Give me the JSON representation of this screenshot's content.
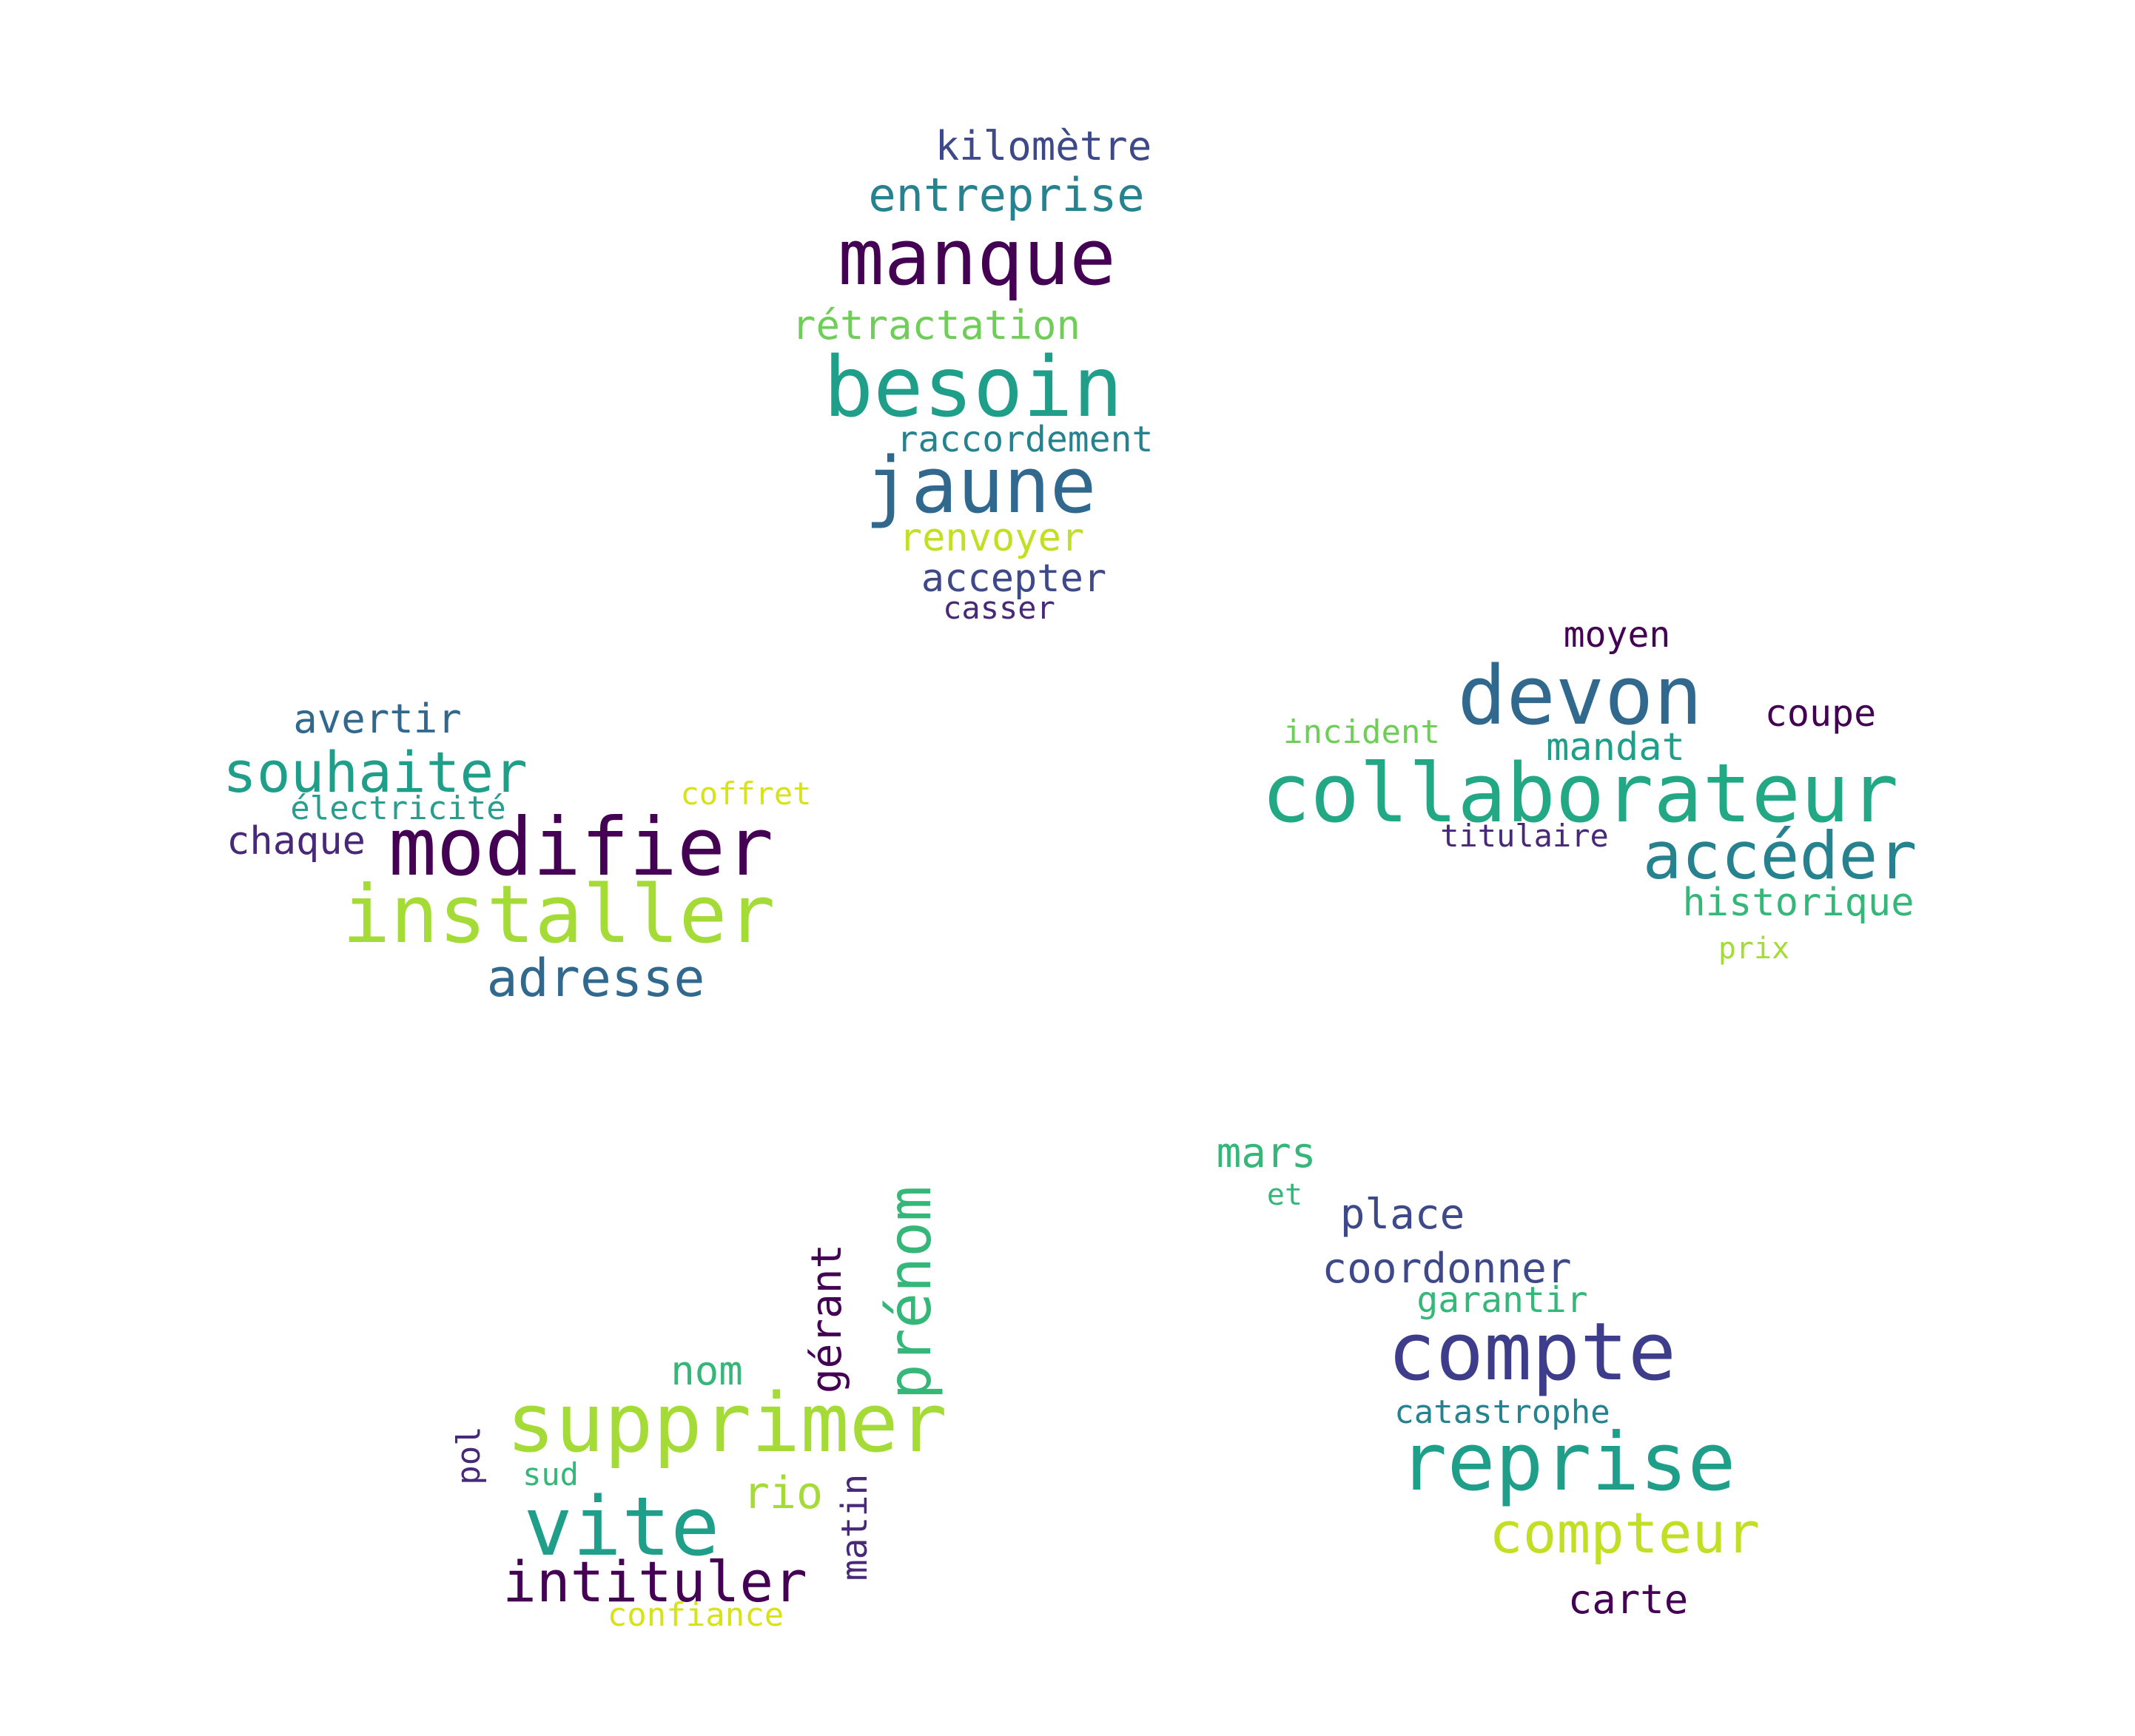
{
  "colors": {
    "background": "#ffffff",
    "dark_purple": "#440154",
    "purple": "#482878",
    "indigo": "#3e4989",
    "blue": "#31688e",
    "teal": "#26828e",
    "teal_green": "#1f9e89",
    "green": "#35b779",
    "light_green": "#6ece58",
    "lime": "#b5de2b",
    "yellow": "#d8e219"
  },
  "clusters": {
    "top": [
      {
        "text": "kilomètre",
        "color": "#3e4989"
      },
      {
        "text": "entreprise",
        "color": "#26828e"
      },
      {
        "text": "manque",
        "color": "#440154"
      },
      {
        "text": "rétractation",
        "color": "#6ece58"
      },
      {
        "text": "besoin",
        "color": "#1f9e89"
      },
      {
        "text": "raccordement",
        "color": "#26828e"
      },
      {
        "text": "jaune",
        "color": "#31688e"
      },
      {
        "text": "renvoyer",
        "color": "#c2df23"
      },
      {
        "text": "accepter",
        "color": "#3e4989"
      },
      {
        "text": "casser",
        "color": "#482878"
      }
    ],
    "left": [
      {
        "text": "avertir",
        "color": "#31688e"
      },
      {
        "text": "souhaiter",
        "color": "#1f9e89"
      },
      {
        "text": "électricité",
        "color": "#2a9d8f"
      },
      {
        "text": "coffret",
        "color": "#d8e219"
      },
      {
        "text": "chaque",
        "color": "#482878"
      },
      {
        "text": "modifier",
        "color": "#440154"
      },
      {
        "text": "installer",
        "color": "#a5db36"
      },
      {
        "text": "adresse",
        "color": "#31688e"
      }
    ],
    "right": [
      {
        "text": "moyen",
        "color": "#440154"
      },
      {
        "text": "devon",
        "color": "#31688e"
      },
      {
        "text": "coupe",
        "color": "#440154"
      },
      {
        "text": "incident",
        "color": "#6ece58"
      },
      {
        "text": "mandat",
        "color": "#1f9e89"
      },
      {
        "text": "collaborateur",
        "color": "#22a884"
      },
      {
        "text": "titulaire",
        "color": "#482878"
      },
      {
        "text": "accéder",
        "color": "#26828e"
      },
      {
        "text": "historique",
        "color": "#35b779"
      },
      {
        "text": "prix",
        "color": "#a5db36"
      }
    ],
    "bottom_left": [
      {
        "text": "prénom",
        "color": "#35b779"
      },
      {
        "text": "gérant",
        "color": "#440154"
      },
      {
        "text": "nom",
        "color": "#35b779"
      },
      {
        "text": "supprimer",
        "color": "#a5db36"
      },
      {
        "text": "pol",
        "color": "#482878"
      },
      {
        "text": "sud",
        "color": "#35b779"
      },
      {
        "text": "rio",
        "color": "#a5db36"
      },
      {
        "text": "matin",
        "color": "#482878"
      },
      {
        "text": "vite",
        "color": "#1f9e89"
      },
      {
        "text": "intituler",
        "color": "#440154"
      },
      {
        "text": "confiance",
        "color": "#d8e219"
      }
    ],
    "bottom_right": [
      {
        "text": "mars",
        "color": "#35b779"
      },
      {
        "text": "et",
        "color": "#35b779"
      },
      {
        "text": "place",
        "color": "#3e4989"
      },
      {
        "text": "coordonner",
        "color": "#3e4989"
      },
      {
        "text": "garantir",
        "color": "#35b779"
      },
      {
        "text": "compte",
        "color": "#3e3d8b"
      },
      {
        "text": "catastrophe",
        "color": "#26828e"
      },
      {
        "text": "reprise",
        "color": "#1f9e89"
      },
      {
        "text": "compteur",
        "color": "#c2df23"
      },
      {
        "text": "carte",
        "color": "#440154"
      }
    ]
  }
}
